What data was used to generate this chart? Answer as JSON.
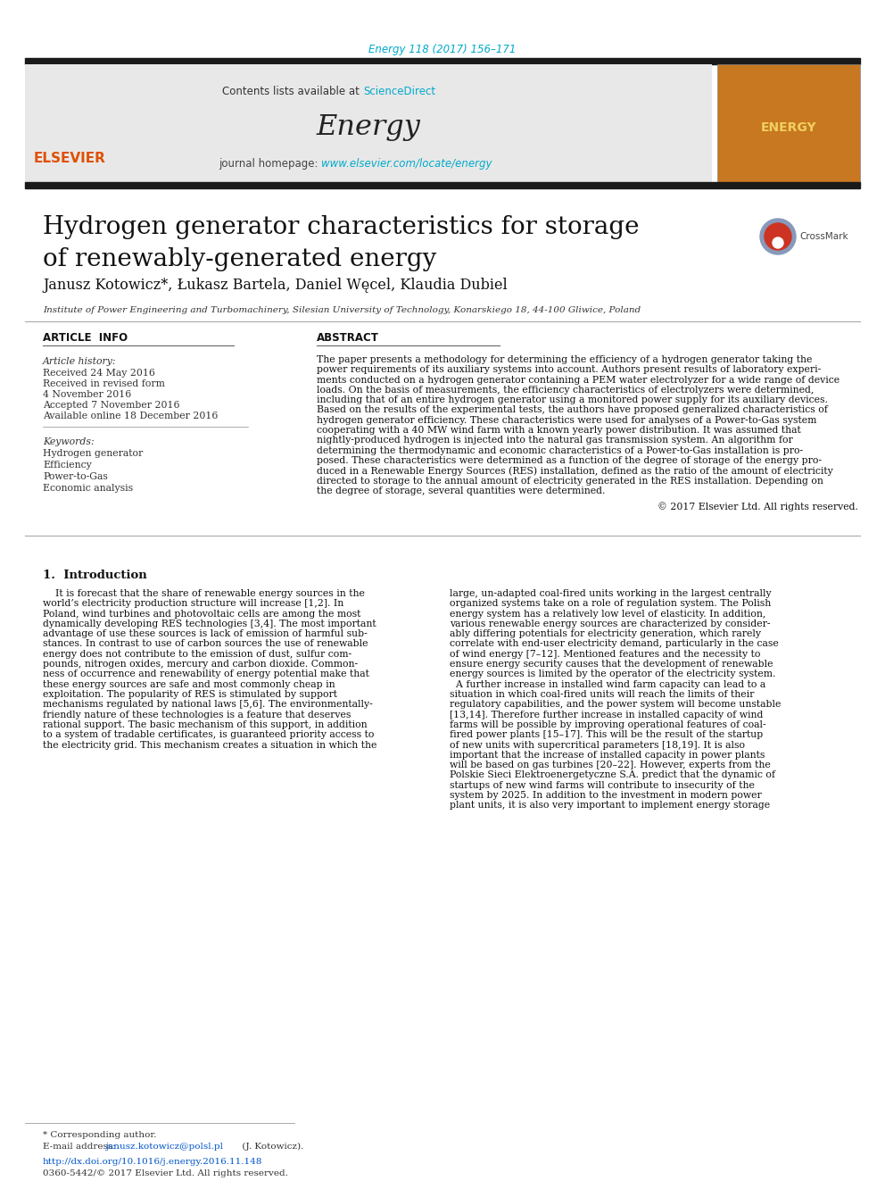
{
  "page_bg": "#ffffff",
  "doi_text": "Energy 118 (2017) 156–171",
  "doi_color": "#00aacc",
  "journal_name": "Energy",
  "header_bg": "#e8e8e8",
  "contents_text": "Contents lists available at ",
  "sciencedirect_text": "ScienceDirect",
  "sciencedirect_color": "#00aacc",
  "homepage_text": "journal homepage: ",
  "homepage_url": "www.elsevier.com/locate/energy",
  "homepage_url_color": "#00aacc",
  "title_line1": "Hydrogen generator characteristics for storage",
  "title_line2": "of renewably-generated energy",
  "authors": "Janusz Kotowicz*, Łukasz Bartela, Daniel Węcel, Klaudia Dubiel",
  "affiliation": "Institute of Power Engineering and Turbomachinery, Silesian University of Technology, Konarskiego 18, 44-100 Gliwice, Poland",
  "article_info_header": "ARTICLE  INFO",
  "abstract_header": "ABSTRACT",
  "article_history_label": "Article history:",
  "received1": "Received 24 May 2016",
  "received_revised": "Received in revised form",
  "date_revised": "4 November 2016",
  "accepted": "Accepted 7 November 2016",
  "available": "Available online 18 December 2016",
  "keywords_label": "Keywords:",
  "kw1": "Hydrogen generator",
  "kw2": "Efficiency",
  "kw3": "Power-to-Gas",
  "kw4": "Economic analysis",
  "copyright_text": "© 2017 Elsevier Ltd. All rights reserved.",
  "intro_header": "1.  Introduction",
  "footer_corresponding": "* Corresponding author.",
  "footer_email_label": "E-mail address: ",
  "footer_email": "janusz.kotowicz@polsl.pl",
  "footer_email_color": "#0055cc",
  "footer_email_suffix": " (J. Kotowicz).",
  "footer_doi": "http://dx.doi.org/10.1016/j.energy.2016.11.148",
  "footer_doi_color": "#0055cc",
  "footer_issn": "0360-5442/© 2017 Elsevier Ltd. All rights reserved.",
  "black_bar_color": "#1a1a1a",
  "separator_color": "#aaaaaa",
  "abstract_lines": [
    "The paper presents a methodology for determining the efficiency of a hydrogen generator taking the",
    "power requirements of its auxiliary systems into account. Authors present results of laboratory experi-",
    "ments conducted on a hydrogen generator containing a PEM water electrolyzer for a wide range of device",
    "loads. On the basis of measurements, the efficiency characteristics of electrolyzers were determined,",
    "including that of an entire hydrogen generator using a monitored power supply for its auxiliary devices.",
    "Based on the results of the experimental tests, the authors have proposed generalized characteristics of",
    "hydrogen generator efficiency. These characteristics were used for analyses of a Power-to-Gas system",
    "cooperating with a 40 MW wind farm with a known yearly power distribution. It was assumed that",
    "nightly-produced hydrogen is injected into the natural gas transmission system. An algorithm for",
    "determining the thermodynamic and economic characteristics of a Power-to-Gas installation is pro-",
    "posed. These characteristics were determined as a function of the degree of storage of the energy pro-",
    "duced in a Renewable Energy Sources (RES) installation, defined as the ratio of the amount of electricity",
    "directed to storage to the annual amount of electricity generated in the RES installation. Depending on",
    "the degree of storage, several quantities were determined."
  ],
  "intro_col1_lines": [
    "    It is forecast that the share of renewable energy sources in the",
    "world’s electricity production structure will increase [1,2]. In",
    "Poland, wind turbines and photovoltaic cells are among the most",
    "dynamically developing RES technologies [3,4]. The most important",
    "advantage of use these sources is lack of emission of harmful sub-",
    "stances. In contrast to use of carbon sources the use of renewable",
    "energy does not contribute to the emission of dust, sulfur com-",
    "pounds, nitrogen oxides, mercury and carbon dioxide. Common-",
    "ness of occurrence and renewability of energy potential make that",
    "these energy sources are safe and most commonly cheap in",
    "exploitation. The popularity of RES is stimulated by support",
    "mechanisms regulated by national laws [5,6]. The environmentally-",
    "friendly nature of these technologies is a feature that deserves",
    "rational support. The basic mechanism of this support, in addition",
    "to a system of tradable certificates, is guaranteed priority access to",
    "the electricity grid. This mechanism creates a situation in which the"
  ],
  "intro_col2_lines": [
    "large, un-adapted coal-fired units working in the largest centrally",
    "organized systems take on a role of regulation system. The Polish",
    "energy system has a relatively low level of elasticity. In addition,",
    "various renewable energy sources are characterized by consider-",
    "ably differing potentials for electricity generation, which rarely",
    "correlate with end-user electricity demand, particularly in the case",
    "of wind energy [7–12]. Mentioned features and the necessity to",
    "ensure energy security causes that the development of renewable",
    "energy sources is limited by the operator of the electricity system.",
    "  A further increase in installed wind farm capacity can lead to a",
    "situation in which coal-fired units will reach the limits of their",
    "regulatory capabilities, and the power system will become unstable",
    "[13,14]. Therefore further increase in installed capacity of wind",
    "farms will be possible by improving operational features of coal-",
    "fired power plants [15–17]. This will be the result of the startup",
    "of new units with supercritical parameters [18,19]. It is also",
    "important that the increase of installed capacity in power plants",
    "will be based on gas turbines [20–22]. However, experts from the",
    "Polskie Sieci Elektroenergetyczne S.A. predict that the dynamic of",
    "startups of new wind farms will contribute to insecurity of the",
    "system by 2025. In addition to the investment in modern power",
    "plant units, it is also very important to implement energy storage"
  ]
}
